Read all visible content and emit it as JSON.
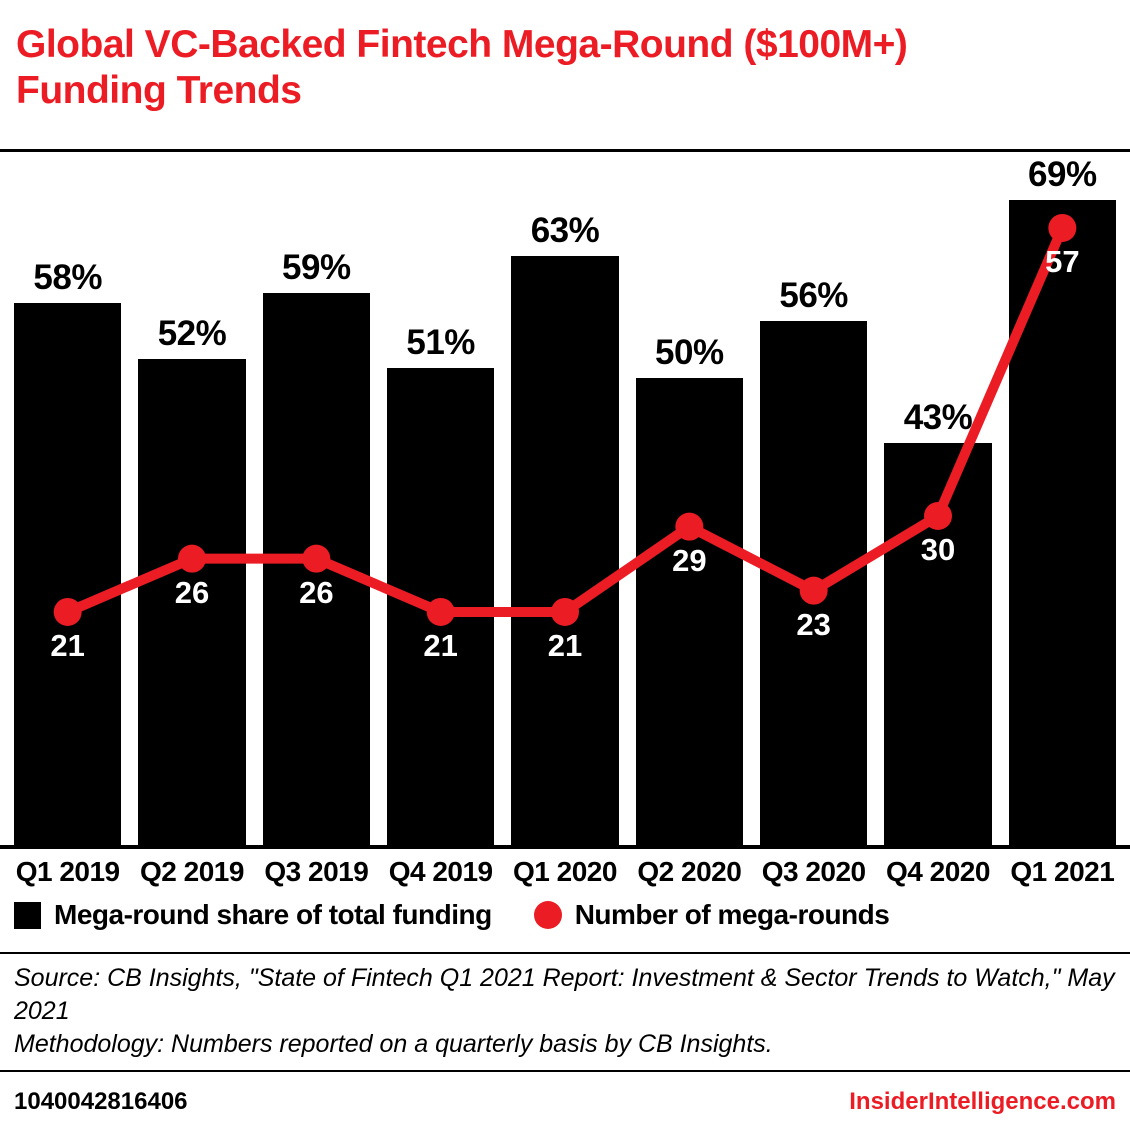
{
  "header": {
    "title": "Global VC-Backed Fintech Mega-Round ($100M+) Funding Trends"
  },
  "chart_data": {
    "type": "bar",
    "subtype": "bar-plus-line-combo",
    "title": "Global VC-Backed Fintech Mega-Round ($100M+) Funding Trends",
    "categories": [
      "Q1 2019",
      "Q2 2019",
      "Q3 2019",
      "Q4 2019",
      "Q1 2020",
      "Q2 2020",
      "Q3 2020",
      "Q4 2020",
      "Q1 2021"
    ],
    "series": [
      {
        "name": "Mega-round share of total funding",
        "type": "bar",
        "unit": "%",
        "values": [
          58,
          52,
          59,
          51,
          63,
          50,
          56,
          43,
          69
        ]
      },
      {
        "name": "Number of mega-rounds",
        "type": "line",
        "unit": "count",
        "values": [
          21,
          26,
          26,
          21,
          21,
          29,
          23,
          30,
          57
        ]
      }
    ],
    "xlabel": "",
    "ylabel": "",
    "grid": false,
    "legend_position": "bottom",
    "bar_color": "#000000",
    "line_color": "#ec1c24",
    "bar_label_suffix": "%"
  },
  "legend": {
    "bar_label": "Mega-round share of total funding",
    "line_label": "Number of mega-rounds"
  },
  "notes": {
    "source": "Source: CB Insights, \"State of Fintech Q1 2021 Report: Investment & Sector Trends to Watch,\" May 2021",
    "methodology": "Methodology: Numbers reported on a quarterly basis by CB Insights."
  },
  "footer": {
    "id": "1040042816406",
    "site": "InsiderIntelligence.com"
  }
}
